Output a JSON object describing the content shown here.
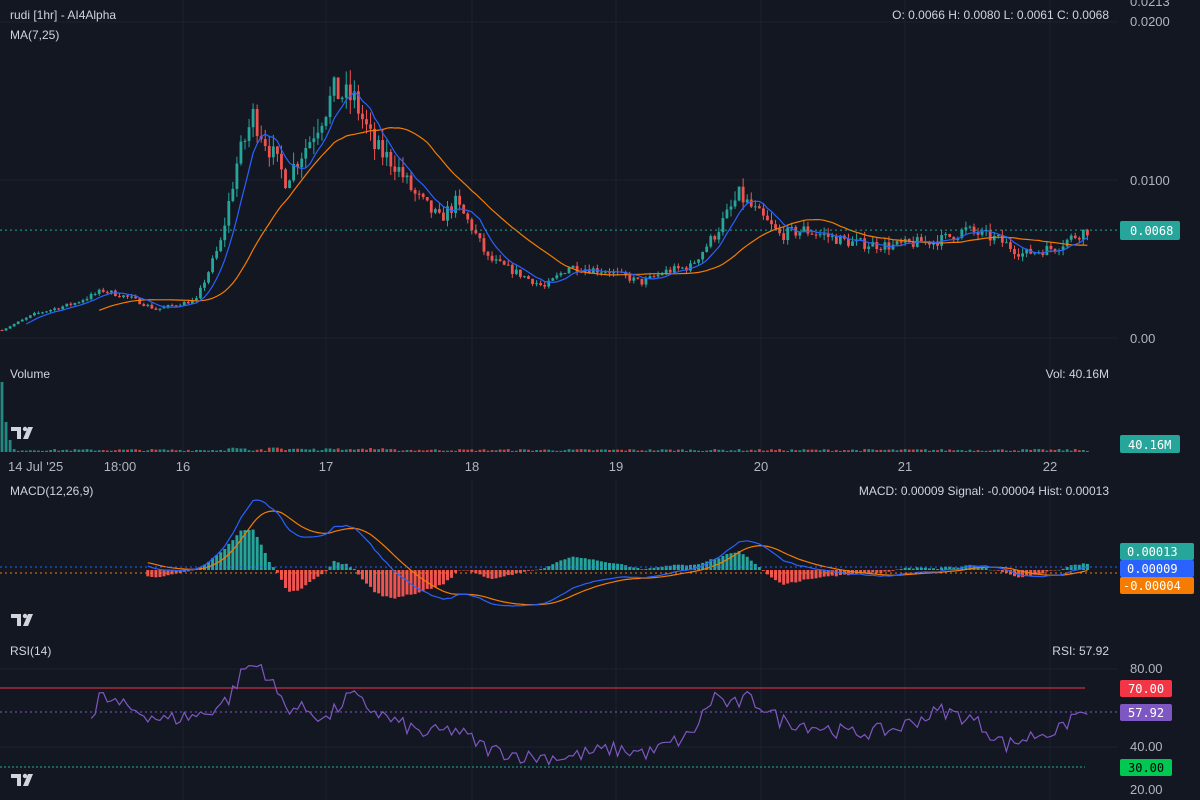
{
  "header": {
    "title": "rudi [1hr] - AI4Alpha",
    "ma_label": "MA(7,25)",
    "ohlc": "O: 0.0066 H: 0.0080 L: 0.0061 C: 0.0068"
  },
  "volume_pane": {
    "label": "Volume",
    "readout": "Vol: 40.16M",
    "badge": "40.16M"
  },
  "macd_pane": {
    "label": "MACD(12,26,9)",
    "readout": "MACD: 0.00009 Signal: -0.00004 Hist: 0.00013"
  },
  "rsi_pane": {
    "label": "RSI(14)",
    "readout": "RSI: 57.92"
  },
  "logo_icon": "tradingview-logo-icon",
  "colors": {
    "background": "#131722",
    "up": "#26a69a",
    "down": "#ef5350",
    "ma7": "#2962ff",
    "ma25": "#f57c00",
    "macd_line": "#2962ff",
    "signal_line": "#f57c00",
    "rsi_line": "#7e57c2",
    "rsi_upper": "#f23645",
    "rsi_lower": "#22ab94"
  },
  "chart_data": [
    {
      "type": "candlestick",
      "title": "rudi [1hr] - AI4Alpha",
      "y_ticks": [
        "0.00",
        "0.0100",
        "0.0200",
        "0.0213"
      ],
      "ylim": [
        0,
        0.0213
      ],
      "x_ticks": [
        "14 Jul '25",
        "18:00",
        "16",
        "17",
        "18",
        "19",
        "20",
        "21",
        "22"
      ],
      "last_price": "0.0068",
      "anchors": [
        [
          0,
          0.0005
        ],
        [
          8,
          0.0015
        ],
        [
          18,
          0.0022
        ],
        [
          25,
          0.003
        ],
        [
          32,
          0.0025
        ],
        [
          38,
          0.0018
        ],
        [
          48,
          0.0024
        ],
        [
          54,
          0.006
        ],
        [
          58,
          0.011
        ],
        [
          62,
          0.014
        ],
        [
          66,
          0.012
        ],
        [
          70,
          0.01
        ],
        [
          76,
          0.0125
        ],
        [
          82,
          0.0155
        ],
        [
          87,
          0.015
        ],
        [
          92,
          0.012
        ],
        [
          97,
          0.011
        ],
        [
          102,
          0.009
        ],
        [
          108,
          0.0075
        ],
        [
          112,
          0.0085
        ],
        [
          116,
          0.007
        ],
        [
          120,
          0.005
        ],
        [
          128,
          0.004
        ],
        [
          134,
          0.0032
        ],
        [
          140,
          0.0045
        ],
        [
          150,
          0.0042
        ],
        [
          158,
          0.0035
        ],
        [
          164,
          0.0042
        ],
        [
          170,
          0.0045
        ],
        [
          176,
          0.0065
        ],
        [
          182,
          0.009
        ],
        [
          186,
          0.008
        ],
        [
          192,
          0.0065
        ],
        [
          198,
          0.0068
        ],
        [
          210,
          0.006
        ],
        [
          220,
          0.0058
        ],
        [
          232,
          0.0062
        ],
        [
          238,
          0.0068
        ],
        [
          246,
          0.0062
        ],
        [
          252,
          0.0053
        ],
        [
          260,
          0.0057
        ],
        [
          266,
          0.0066
        ],
        [
          268,
          0.0068
        ]
      ],
      "series": [
        {
          "name": "MA(7)",
          "color": "#2962ff"
        },
        {
          "name": "MA(25)",
          "color": "#f57c00"
        }
      ]
    },
    {
      "type": "bar",
      "title": "Volume",
      "last_value": "40.16M"
    },
    {
      "type": "line",
      "title": "MACD(12,26,9)",
      "y_ticks_badges": [
        "0.00013",
        "0.00009",
        "-0.00004"
      ],
      "series": [
        {
          "name": "MACD",
          "color": "#2962ff"
        },
        {
          "name": "Signal",
          "color": "#f57c00"
        },
        {
          "name": "Hist"
        }
      ]
    },
    {
      "type": "line",
      "title": "RSI(14)",
      "ylim": [
        20,
        90
      ],
      "y_ticks": [
        "20.00",
        "40.00",
        "80.00"
      ],
      "bands": [
        "70.00",
        "30.00"
      ],
      "current": "57.92",
      "anchors": [
        [
          24,
          67
        ],
        [
          30,
          62
        ],
        [
          40,
          55
        ],
        [
          50,
          58
        ],
        [
          56,
          66
        ],
        [
          60,
          82
        ],
        [
          64,
          83
        ],
        [
          70,
          62
        ],
        [
          76,
          60
        ],
        [
          80,
          55
        ],
        [
          86,
          68
        ],
        [
          90,
          62
        ],
        [
          96,
          55
        ],
        [
          104,
          48
        ],
        [
          112,
          50
        ],
        [
          120,
          40
        ],
        [
          130,
          36
        ],
        [
          140,
          36
        ],
        [
          150,
          40
        ],
        [
          160,
          38
        ],
        [
          164,
          42
        ],
        [
          170,
          47
        ],
        [
          176,
          68
        ],
        [
          180,
          62
        ],
        [
          184,
          66
        ],
        [
          188,
          62
        ],
        [
          192,
          55
        ],
        [
          200,
          52
        ],
        [
          210,
          48
        ],
        [
          220,
          50
        ],
        [
          232,
          60
        ],
        [
          240,
          55
        ],
        [
          248,
          42
        ],
        [
          256,
          48
        ],
        [
          262,
          50
        ],
        [
          264,
          57
        ],
        [
          266,
          57.92
        ]
      ]
    }
  ]
}
